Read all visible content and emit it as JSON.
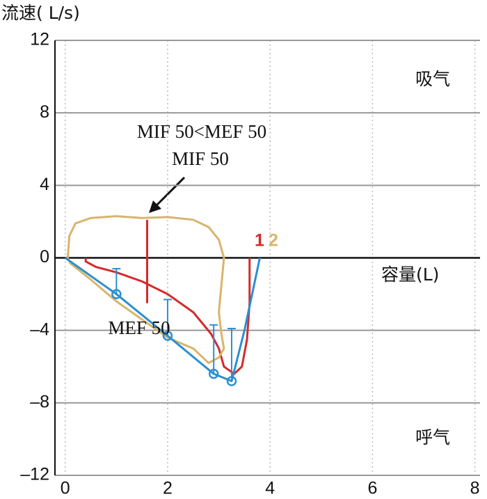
{
  "chart_data": {
    "type": "line",
    "y_label": "流速( L/s)",
    "x_label": "容量(L)",
    "xlim": [
      -0.2,
      8.1
    ],
    "ylim": [
      -12,
      12
    ],
    "xticks": [
      0,
      2,
      4,
      6,
      8
    ],
    "yticks": [
      12,
      8,
      4,
      0,
      {
        "value": -4,
        "label": "–4"
      },
      {
        "value": -8,
        "label": "–8"
      },
      {
        "value": -12,
        "label": "–12"
      }
    ],
    "grid": true,
    "series": [
      {
        "name": "1",
        "color": "#d42a2a",
        "x": [
          0.4,
          0.4,
          0.6,
          1.0,
          1.5,
          2.0,
          2.5,
          2.85,
          3.0,
          3.1,
          3.3,
          3.45,
          3.55,
          3.6,
          3.6
        ],
        "values": [
          0,
          -0.2,
          -0.5,
          -0.8,
          -1.3,
          -2.0,
          -3.0,
          -4.2,
          -5.0,
          -6.0,
          -6.4,
          -6.0,
          -4.5,
          -2.5,
          0
        ]
      },
      {
        "name": "2",
        "color": "#d9b46a",
        "x": [
          0.05,
          0.08,
          0.2,
          0.5,
          1.0,
          1.5,
          2.0,
          2.5,
          2.8,
          3.0,
          3.1,
          3.05,
          3.0,
          3.05,
          3.1,
          3.0,
          2.8,
          2.5,
          2.0,
          1.5,
          1.0,
          0.5,
          0.1,
          0.05
        ],
        "values": [
          0,
          1.2,
          1.9,
          2.2,
          2.3,
          2.2,
          2.25,
          2.1,
          1.7,
          1.0,
          0,
          -1.5,
          -3.0,
          -4.2,
          -5.0,
          -5.5,
          -5.8,
          -5.0,
          -4.4,
          -3.4,
          -2.4,
          -1.2,
          -0.3,
          0
        ]
      },
      {
        "color": "#d42a2a",
        "x": [
          1.6,
          1.6
        ],
        "values": [
          2.1,
          -2.5
        ]
      },
      {
        "color": "#2b8fd0",
        "x": [
          0,
          1.0,
          2.0,
          2.9,
          3.25,
          3.5,
          3.8
        ],
        "values": [
          0,
          -2.0,
          -4.3,
          -6.4,
          -6.8,
          -4.0,
          0
        ]
      }
    ],
    "markers": {
      "color": "#2b8fd0",
      "x": [
        1.0,
        2.0,
        2.9,
        3.25
      ],
      "values": [
        -2.0,
        -4.3,
        -6.4,
        -6.8
      ],
      "errors": [
        1.4,
        2.0,
        2.7,
        2.9
      ]
    },
    "annotations": [
      "MIF 50<MEF 50",
      "MIF 50",
      "MEF 50",
      "吸气",
      "呼气"
    ]
  }
}
